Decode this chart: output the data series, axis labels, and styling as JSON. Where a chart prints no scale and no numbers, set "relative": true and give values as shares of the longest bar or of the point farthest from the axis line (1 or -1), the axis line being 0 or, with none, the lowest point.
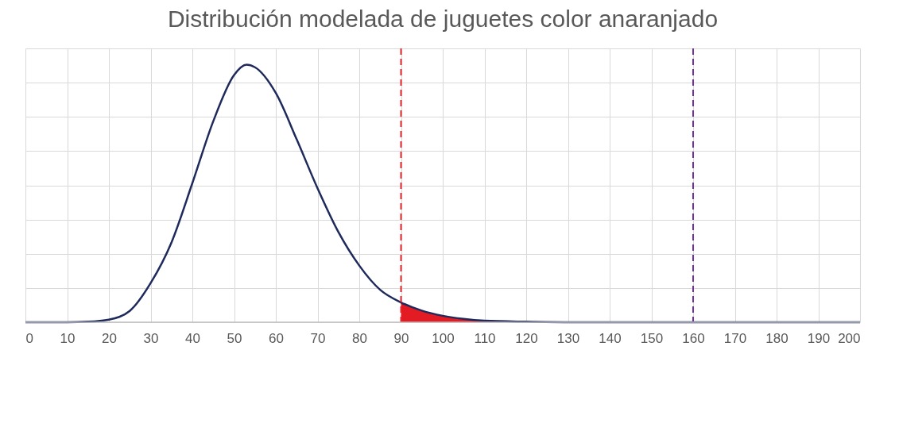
{
  "chart_data": {
    "type": "line",
    "title": "Distribución modelada de juguetes color anaranjado",
    "relative": true,
    "xlim": [
      0,
      200
    ],
    "xticks": [
      0,
      10,
      20,
      30,
      40,
      50,
      60,
      70,
      80,
      90,
      100,
      110,
      120,
      130,
      140,
      150,
      160,
      170,
      180,
      190,
      200
    ],
    "grid": true,
    "legend": false,
    "marker": "none",
    "line_style": "solid",
    "series": [
      {
        "type": "area",
        "color": "#e31b23",
        "x": [
          90,
          95,
          100,
          105,
          110,
          120
        ],
        "values": [
          0.077,
          0.045,
          0.025,
          0.013,
          0.006,
          0.002
        ]
      },
      {
        "color": "#1f2a5c",
        "x": [
          0,
          10,
          15,
          20,
          25,
          30,
          35,
          40,
          45,
          50,
          53,
          55,
          60,
          65,
          70,
          75,
          80,
          85,
          90,
          95,
          100,
          105,
          110,
          120,
          130,
          200
        ],
        "values": [
          0,
          0,
          0.002,
          0.0103,
          0.044,
          0.152,
          0.31,
          0.54,
          0.78,
          0.96,
          1,
          0.99,
          0.89,
          0.71,
          0.52,
          0.35,
          0.22,
          0.126,
          0.077,
          0.045,
          0.025,
          0.013,
          0.006,
          0.002,
          0,
          0
        ]
      }
    ],
    "ref_lines": [
      {
        "axis": "x",
        "value": 90,
        "color": "#e8262d",
        "line_style": "dashed"
      },
      {
        "axis": "x",
        "value": 160,
        "color": "#7030a0",
        "line_style": "dashed"
      }
    ]
  }
}
